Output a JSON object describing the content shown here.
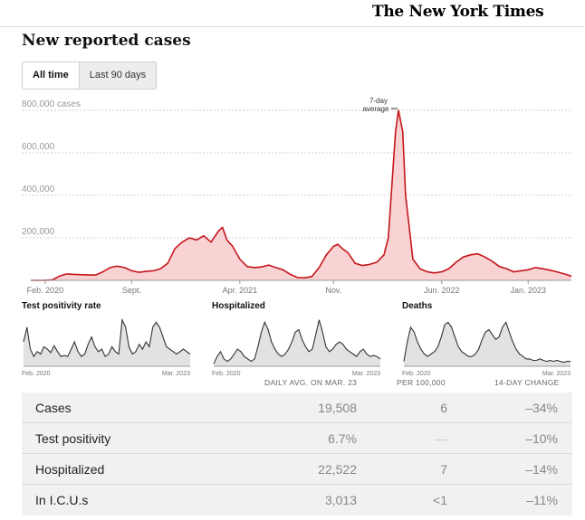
{
  "masthead": {
    "logo": "The New York Times"
  },
  "page_title": "New reported cases",
  "toggle": {
    "options": [
      "All time",
      "Last 90 days"
    ],
    "selected": "All time"
  },
  "colors": {
    "cases_line": "#c4161c",
    "cases_fill": "#f9d2d3",
    "mini_line": "#333333",
    "mini_fill": "#e2e2e2",
    "grid": "#cfcfcf"
  },
  "chart_data": [
    {
      "type": "area",
      "y_unit_label": "cases",
      "annotation": [
        "7-day",
        "average"
      ],
      "x_ticks": [
        "Feb. 2020",
        "Sept.",
        "Apr. 2021",
        "Nov.",
        "Jun. 2022",
        "Jan. 2023"
      ],
      "y_ticks": [
        200000,
        400000,
        600000,
        800000
      ],
      "y_tick_labels": [
        "200,000",
        "400,000",
        "600,000",
        "800,000 cases"
      ],
      "x_range": [
        0,
        37.5
      ],
      "ylim": [
        0,
        800000
      ],
      "grid": true,
      "series": [
        {
          "values": [
            [
              0,
              0
            ],
            [
              1,
              500
            ],
            [
              1.5,
              2000
            ],
            [
              2,
              20000
            ],
            [
              2.5,
              30000
            ],
            [
              3,
              28000
            ],
            [
              4,
              25000
            ],
            [
              4.5,
              25000
            ],
            [
              5,
              40000
            ],
            [
              5.5,
              60000
            ],
            [
              6,
              67000
            ],
            [
              6.5,
              60000
            ],
            [
              7,
              45000
            ],
            [
              7.5,
              38000
            ],
            [
              8,
              42000
            ],
            [
              8.5,
              45000
            ],
            [
              9,
              55000
            ],
            [
              9.5,
              80000
            ],
            [
              10,
              150000
            ],
            [
              10.5,
              180000
            ],
            [
              11,
              200000
            ],
            [
              11.5,
              190000
            ],
            [
              12,
              210000
            ],
            [
              12.5,
              180000
            ],
            [
              13,
              230000
            ],
            [
              13.3,
              250000
            ],
            [
              13.6,
              190000
            ],
            [
              14,
              160000
            ],
            [
              14.5,
              100000
            ],
            [
              15,
              65000
            ],
            [
              15.5,
              60000
            ],
            [
              16,
              63000
            ],
            [
              16.5,
              72000
            ],
            [
              17,
              60000
            ],
            [
              17.5,
              50000
            ],
            [
              18,
              28000
            ],
            [
              18.5,
              13000
            ],
            [
              19,
              12000
            ],
            [
              19.5,
              18000
            ],
            [
              20,
              60000
            ],
            [
              20.5,
              120000
            ],
            [
              21,
              160000
            ],
            [
              21.3,
              170000
            ],
            [
              21.6,
              150000
            ],
            [
              22,
              130000
            ],
            [
              22.5,
              80000
            ],
            [
              23,
              70000
            ],
            [
              23.5,
              75000
            ],
            [
              24,
              85000
            ],
            [
              24.5,
              120000
            ],
            [
              24.8,
              200000
            ],
            [
              25,
              400000
            ],
            [
              25.3,
              700000
            ],
            [
              25.5,
              800000
            ],
            [
              25.8,
              700000
            ],
            [
              26,
              400000
            ],
            [
              26.5,
              100000
            ],
            [
              27,
              55000
            ],
            [
              27.5,
              40000
            ],
            [
              28,
              35000
            ],
            [
              28.5,
              40000
            ],
            [
              29,
              55000
            ],
            [
              29.5,
              85000
            ],
            [
              30,
              110000
            ],
            [
              30.5,
              120000
            ],
            [
              31,
              125000
            ],
            [
              31.5,
              110000
            ],
            [
              32,
              90000
            ],
            [
              32.5,
              65000
            ],
            [
              33,
              55000
            ],
            [
              33.5,
              40000
            ],
            [
              34,
              45000
            ],
            [
              34.5,
              50000
            ],
            [
              35,
              60000
            ],
            [
              35.5,
              55000
            ],
            [
              36,
              48000
            ],
            [
              36.5,
              40000
            ],
            [
              37,
              30000
            ],
            [
              37.5,
              20000
            ]
          ]
        }
      ]
    },
    {
      "type": "area",
      "title": "Test positivity rate",
      "x_ticks": [
        "Feb. 2020",
        "Mar. 2023"
      ],
      "series": [
        {
          "values": [
            0.5,
            0.8,
            0.35,
            0.2,
            0.3,
            0.25,
            0.4,
            0.35,
            0.28,
            0.42,
            0.3,
            0.2,
            0.22,
            0.2,
            0.35,
            0.5,
            0.3,
            0.2,
            0.25,
            0.45,
            0.6,
            0.4,
            0.3,
            0.35,
            0.2,
            0.25,
            0.4,
            0.3,
            0.25,
            0.95,
            0.8,
            0.4,
            0.25,
            0.3,
            0.45,
            0.35,
            0.5,
            0.4,
            0.8,
            0.9,
            0.8,
            0.6,
            0.4,
            0.35,
            0.3,
            0.25,
            0.3,
            0.35,
            0.3,
            0.25
          ]
        }
      ]
    },
    {
      "type": "area",
      "title": "Hospitalized",
      "x_ticks": [
        "Feb. 2020",
        "Mar. 2023"
      ],
      "series": [
        {
          "values": [
            0.05,
            0.2,
            0.3,
            0.15,
            0.1,
            0.15,
            0.25,
            0.35,
            0.3,
            0.2,
            0.15,
            0.1,
            0.15,
            0.4,
            0.7,
            0.9,
            0.75,
            0.5,
            0.35,
            0.25,
            0.2,
            0.25,
            0.35,
            0.5,
            0.7,
            0.75,
            0.55,
            0.4,
            0.3,
            0.35,
            0.65,
            0.95,
            0.7,
            0.4,
            0.3,
            0.35,
            0.45,
            0.5,
            0.45,
            0.35,
            0.3,
            0.25,
            0.2,
            0.3,
            0.35,
            0.25,
            0.2,
            0.22,
            0.2,
            0.15
          ]
        }
      ]
    },
    {
      "type": "area",
      "title": "Deaths",
      "x_ticks": [
        "Feb. 2020",
        "Mar. 2023"
      ],
      "series": [
        {
          "values": [
            0.1,
            0.5,
            0.8,
            0.7,
            0.5,
            0.35,
            0.25,
            0.2,
            0.25,
            0.3,
            0.4,
            0.6,
            0.85,
            0.9,
            0.8,
            0.6,
            0.4,
            0.3,
            0.25,
            0.2,
            0.2,
            0.25,
            0.35,
            0.55,
            0.7,
            0.75,
            0.65,
            0.55,
            0.6,
            0.8,
            0.9,
            0.7,
            0.5,
            0.35,
            0.25,
            0.2,
            0.15,
            0.15,
            0.12,
            0.12,
            0.15,
            0.12,
            0.1,
            0.12,
            0.1,
            0.12,
            0.1,
            0.08,
            0.1,
            0.1
          ]
        }
      ]
    }
  ],
  "table": {
    "headers": [
      "DAILY AVG. ON MAR. 23",
      "PER 100,000",
      "14-DAY CHANGE"
    ],
    "rows": [
      {
        "label": "Cases",
        "avg": "19,508",
        "per": "6",
        "change": "–34%"
      },
      {
        "label": "Test positivity",
        "avg": "6.7%",
        "per": "—",
        "change": "–10%"
      },
      {
        "label": "Hospitalized",
        "avg": "22,522",
        "per": "7",
        "change": "–14%"
      },
      {
        "label": "In I.C.U.s",
        "avg": "3,013",
        "per": "<1",
        "change": "–11%"
      }
    ]
  }
}
